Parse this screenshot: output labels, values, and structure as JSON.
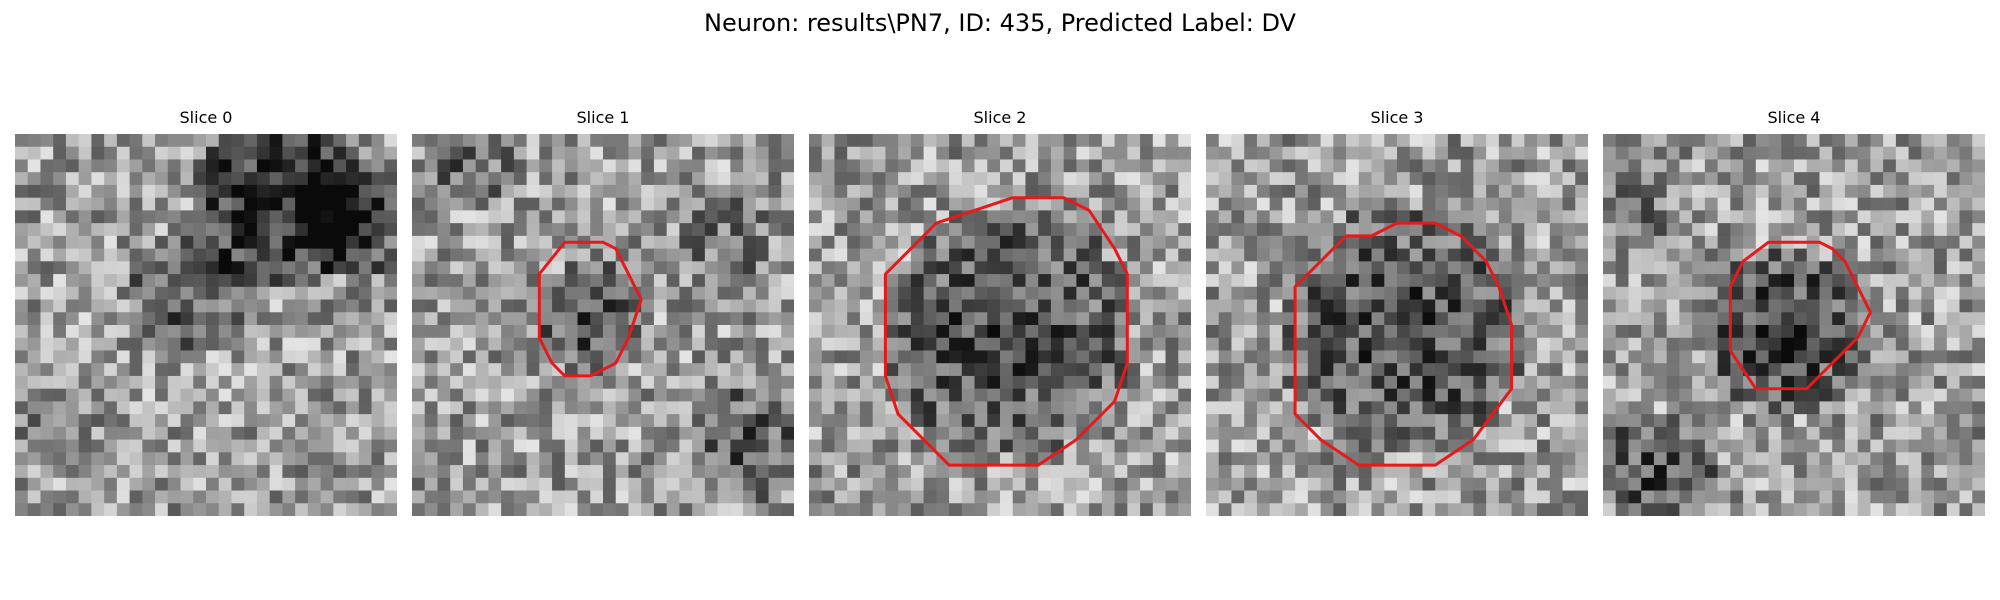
{
  "figure": {
    "title": "Neuron: results\\PN7, ID: 435, Predicted Label: DV"
  },
  "contour_color": "#e41a1c",
  "panels": [
    {
      "title": "Slice 0",
      "has_contour": false,
      "seed": 11,
      "dark_regions": "top-right"
    },
    {
      "title": "Slice 1",
      "has_contour": true,
      "seed": 23,
      "dark_regions": "center-small"
    },
    {
      "title": "Slice 2",
      "has_contour": true,
      "seed": 37,
      "dark_regions": "center-large"
    },
    {
      "title": "Slice 3",
      "has_contour": true,
      "seed": 41,
      "dark_regions": "center-large"
    },
    {
      "title": "Slice 4",
      "has_contour": true,
      "seed": 53,
      "dark_regions": "center-medium"
    }
  ]
}
